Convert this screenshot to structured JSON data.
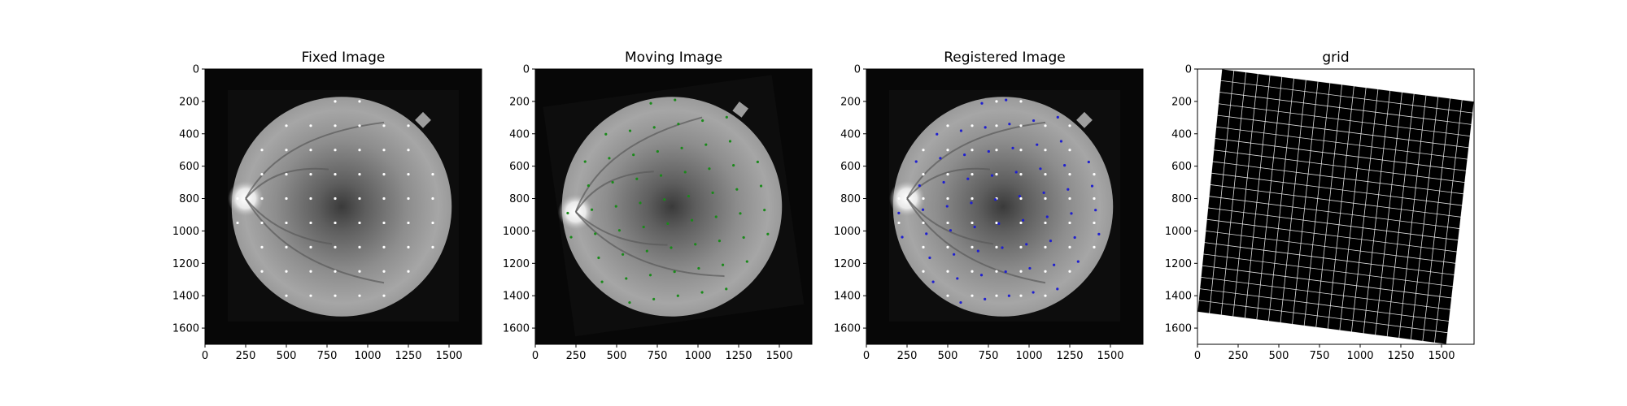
{
  "figure": {
    "background": "#ffffff"
  },
  "panels": [
    {
      "id": "fixed",
      "title": "Fixed Image",
      "content": "fundus",
      "fundus_rotation_deg": 0,
      "dot_color": "#ffffff"
    },
    {
      "id": "moving",
      "title": "Moving Image",
      "content": "fundus",
      "fundus_rotation_deg": -8,
      "dot_color": "#1a8a1a"
    },
    {
      "id": "registered",
      "title": "Registered Image",
      "content": "fundus",
      "fundus_rotation_deg": 0,
      "dot_color": "#ffffff",
      "overlay_dot_color": "#1f1fd0"
    },
    {
      "id": "grid",
      "title": "grid",
      "content": "deformation-grid",
      "grid_rotation_deg": -8
    }
  ],
  "chart_data": [
    {
      "type": "image",
      "title": "Fixed Image",
      "xlim": [
        0,
        1700
      ],
      "ylim": [
        1700,
        0
      ],
      "x_ticks": [
        "0",
        "250",
        "500",
        "750",
        "1000",
        "1250",
        "1500"
      ],
      "y_ticks": [
        "0",
        "200",
        "400",
        "600",
        "800",
        "1000",
        "1200",
        "1400",
        "1600"
      ],
      "landmarks": {
        "color": "#ffffff",
        "x": [
          200,
          350,
          500,
          650,
          800,
          950,
          1100,
          1250,
          1400
        ],
        "y": [
          200,
          350,
          500,
          650,
          800,
          950,
          1100,
          1250,
          1400
        ]
      }
    },
    {
      "type": "image",
      "title": "Moving Image",
      "xlim": [
        0,
        1700
      ],
      "ylim": [
        1700,
        0
      ],
      "x_ticks": [
        "0",
        "250",
        "500",
        "750",
        "1000",
        "1250",
        "1500"
      ],
      "y_ticks": [
        "0",
        "200",
        "400",
        "600",
        "800",
        "1000",
        "1200",
        "1400",
        "1600"
      ],
      "landmarks": {
        "color": "#1a8a1a",
        "rotation_deg": -8
      }
    },
    {
      "type": "image",
      "title": "Registered Image",
      "xlim": [
        0,
        1700
      ],
      "ylim": [
        1700,
        0
      ],
      "x_ticks": [
        "0",
        "250",
        "500",
        "750",
        "1000",
        "1250",
        "1500"
      ],
      "y_ticks": [
        "0",
        "200",
        "400",
        "600",
        "800",
        "1000",
        "1200",
        "1400",
        "1600"
      ],
      "landmarks": {
        "color": "#ffffff",
        "overlay_color": "#1f1fd0"
      }
    },
    {
      "type": "image",
      "title": "grid",
      "xlim": [
        0,
        1700
      ],
      "ylim": [
        1700,
        0
      ],
      "x_ticks": [
        "0",
        "250",
        "500",
        "750",
        "1000",
        "1250",
        "1500"
      ],
      "y_ticks": [
        "0",
        "200",
        "400",
        "600",
        "800",
        "1000",
        "1200",
        "1400",
        "1600"
      ],
      "deformation": {
        "corners": [
          [
            150,
            0
          ],
          [
            1700,
            200
          ],
          [
            1530,
            1700
          ],
          [
            0,
            1500
          ]
        ],
        "lines": 21
      }
    }
  ]
}
